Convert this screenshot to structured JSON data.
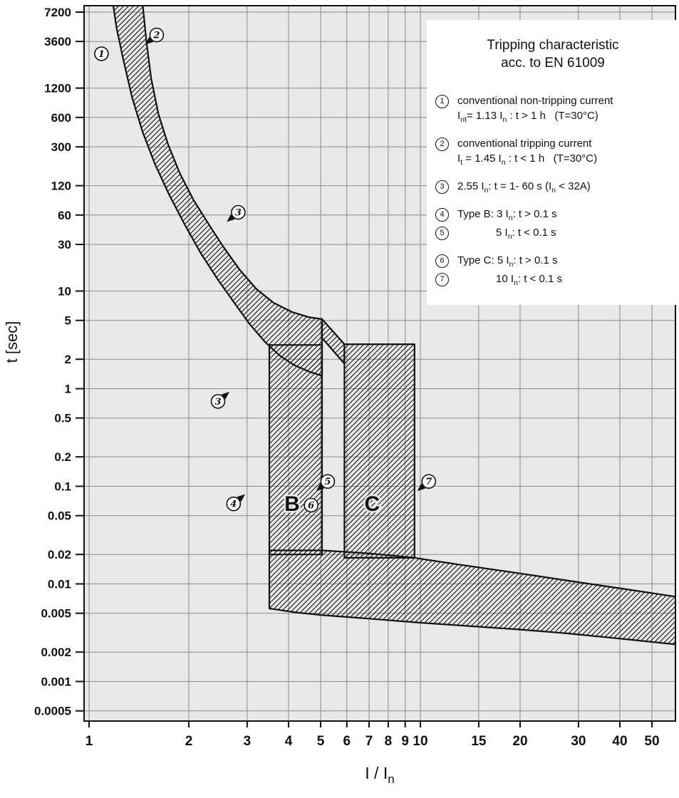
{
  "legend_box": {
    "title_line1": "Tripping characteristic",
    "title_line2": "acc. to EN 61009",
    "items": [
      {
        "num": "1",
        "gap_before": false,
        "indent": false,
        "rows": [
          [
            {
              "t": "conventional non-tripping current"
            }
          ],
          [
            {
              "t": "I"
            },
            {
              "s": "nt"
            },
            {
              "t": "= 1.13 I"
            },
            {
              "s": "n"
            },
            {
              "t": " : t > 1 h   (T=30°C)"
            }
          ]
        ]
      },
      {
        "num": "2",
        "gap_before": true,
        "indent": false,
        "rows": [
          [
            {
              "t": "conventional tripping current"
            }
          ],
          [
            {
              "t": "I"
            },
            {
              "s": "t"
            },
            {
              "t": " = 1.45 I"
            },
            {
              "s": "n"
            },
            {
              "t": " : t < 1 h   (T=30°C)"
            }
          ]
        ]
      },
      {
        "num": "3",
        "gap_before": true,
        "indent": false,
        "rows": [
          [
            {
              "t": "2.55 I"
            },
            {
              "s": "n"
            },
            {
              "t": ": t = 1- 60 s (I"
            },
            {
              "s": "n"
            },
            {
              "t": " < 32A)"
            }
          ]
        ]
      },
      {
        "num": "4",
        "gap_before": true,
        "indent": false,
        "rows": [
          [
            {
              "t": "Type B: 3 I"
            },
            {
              "s": "n"
            },
            {
              "t": ": t > 0.1 s"
            }
          ]
        ]
      },
      {
        "num": "5",
        "gap_before": false,
        "indent": true,
        "rows": [
          [
            {
              "t": "5 I"
            },
            {
              "s": "n"
            },
            {
              "t": ": t < 0.1 s"
            }
          ]
        ]
      },
      {
        "num": "6",
        "gap_before": true,
        "indent": false,
        "rows": [
          [
            {
              "t": "Type C: 5 I"
            },
            {
              "s": "n"
            },
            {
              "t": ": t > 0.1 s"
            }
          ]
        ]
      },
      {
        "num": "7",
        "gap_before": false,
        "indent": true,
        "rows": [
          [
            {
              "t": "10 I"
            },
            {
              "s": "n"
            },
            {
              "t": ": t < 0.1 s"
            }
          ]
        ]
      }
    ]
  },
  "chart_data": {
    "type": "area",
    "title": "Tripping characteristic acc. to EN 61009",
    "xlabel": "I / In",
    "xlabel_main": "I / I",
    "xlabel_sub": "n",
    "ylabel": "t [sec]",
    "x_scale": "log",
    "y_scale": "log",
    "x_ticks": [
      "1",
      "2",
      "3",
      "4",
      "5",
      "6",
      "7",
      "8",
      "9",
      "10",
      "15",
      "20",
      "30",
      "40",
      "50"
    ],
    "y_ticks": [
      "7200",
      "3600",
      "1200",
      "600",
      "300",
      "120",
      "60",
      "30",
      "10",
      "5",
      "2",
      "1",
      "0.5",
      "0.2",
      "0.1",
      "0.05",
      "0.02",
      "0.01",
      "0.005",
      "0.002",
      "0.001",
      "0.0005"
    ],
    "x_range": [
      0.97,
      59
    ],
    "y_range": [
      0.00039,
      8400
    ],
    "grid": true,
    "legend_position": "top-right",
    "colors": {
      "plot_bg": "#e9e9e9",
      "grid": "#8c8c8c",
      "band_outline": "#111111",
      "hatch": "#111111",
      "legend_bg": "#ffffff",
      "text": "#111111"
    },
    "bands": [
      {
        "name": "thermal-tripping-band",
        "points": [
          [
            1.45,
            9000
          ],
          [
            1.49,
            3600
          ],
          [
            1.54,
            1500
          ],
          [
            1.62,
            650
          ],
          [
            1.73,
            320
          ],
          [
            1.88,
            160
          ],
          [
            2.07,
            85
          ],
          [
            2.3,
            48
          ],
          [
            2.55,
            28
          ],
          [
            2.85,
            16.5
          ],
          [
            3.2,
            10.5
          ],
          [
            3.6,
            7.6
          ],
          [
            4.1,
            6.1
          ],
          [
            4.6,
            5.4
          ],
          [
            5.05,
            5.15
          ],
          [
            5.05,
            1.35
          ],
          [
            4.6,
            1.5
          ],
          [
            4.15,
            1.75
          ],
          [
            3.75,
            2.2
          ],
          [
            3.4,
            3.0
          ],
          [
            3.05,
            4.6
          ],
          [
            2.75,
            7.5
          ],
          [
            2.45,
            13.0
          ],
          [
            2.18,
            24.0
          ],
          [
            1.95,
            47.0
          ],
          [
            1.75,
            95.0
          ],
          [
            1.58,
            200
          ],
          [
            1.45,
            430
          ],
          [
            1.35,
            950
          ],
          [
            1.27,
            2300
          ],
          [
            1.21,
            5000
          ],
          [
            1.18,
            9000
          ]
        ]
      },
      {
        "name": "type-b-instantaneous-range",
        "points": [
          [
            3.5,
            2.8
          ],
          [
            5.05,
            2.8
          ],
          [
            5.05,
            0.02
          ],
          [
            3.5,
            0.02
          ]
        ]
      },
      {
        "name": "band-bridge-b-to-c",
        "points": [
          [
            5.05,
            5.15
          ],
          [
            5.9,
            2.85
          ],
          [
            5.9,
            1.8
          ],
          [
            5.05,
            3.3
          ]
        ]
      },
      {
        "name": "type-c-instantaneous-range",
        "points": [
          [
            5.9,
            2.85
          ],
          [
            9.6,
            2.85
          ],
          [
            9.6,
            0.0185
          ],
          [
            5.9,
            0.0185
          ]
        ]
      },
      {
        "name": "opening-time-band",
        "points": [
          [
            3.5,
            0.022
          ],
          [
            5.05,
            0.022
          ],
          [
            7.0,
            0.0205
          ],
          [
            9.6,
            0.0185
          ],
          [
            13.0,
            0.0158
          ],
          [
            20.0,
            0.0128
          ],
          [
            30.0,
            0.0104
          ],
          [
            42.0,
            0.0088
          ],
          [
            59.0,
            0.0074
          ],
          [
            59.0,
            0.0024
          ],
          [
            40.0,
            0.00275
          ],
          [
            28.0,
            0.0031
          ],
          [
            20.0,
            0.0034
          ],
          [
            14.0,
            0.0037
          ],
          [
            10.0,
            0.004
          ],
          [
            7.0,
            0.0044
          ],
          [
            5.0,
            0.0048
          ],
          [
            4.2,
            0.0051
          ],
          [
            3.5,
            0.0056
          ]
        ]
      }
    ],
    "markers": [
      {
        "label": "1",
        "x": 1.09,
        "y": 2700,
        "arrow": ""
      },
      {
        "label": "2",
        "x": 1.6,
        "y": 4200,
        "arrow": "dl"
      },
      {
        "label": "3",
        "x": 2.82,
        "y": 64,
        "arrow": "dl"
      },
      {
        "label": "3",
        "x": 2.45,
        "y": 0.74,
        "arrow": "ur"
      },
      {
        "label": "4",
        "x": 2.73,
        "y": 0.066,
        "arrow": "ur"
      },
      {
        "label": "5",
        "x": 5.25,
        "y": 0.112,
        "arrow": "dl"
      },
      {
        "label": "6",
        "x": 4.68,
        "y": 0.064,
        "arrow": ""
      },
      {
        "label": "7",
        "x": 10.6,
        "y": 0.112,
        "arrow": "dl"
      }
    ],
    "region_labels": [
      {
        "text": "B",
        "x": 4.1,
        "y": 0.066
      },
      {
        "text": "C",
        "x": 7.15,
        "y": 0.066
      }
    ]
  }
}
